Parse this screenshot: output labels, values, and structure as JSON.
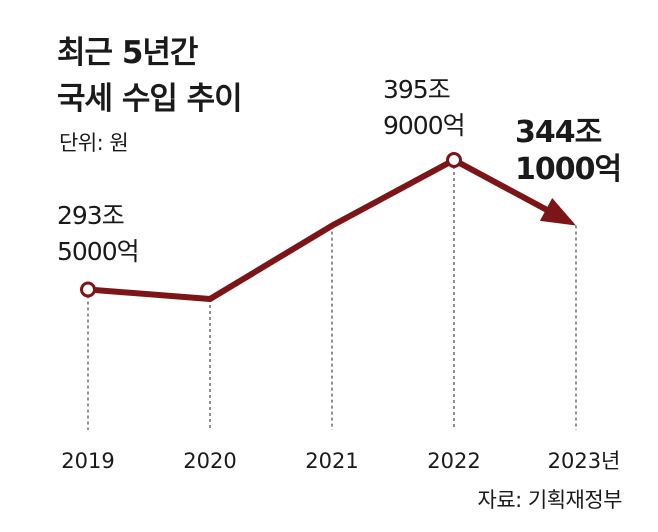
{
  "header": {
    "title_line1": "최근 5년간",
    "title_line2": "국세 수입 추이",
    "unit": "단위: 원"
  },
  "source": "자료: 기획재정부",
  "colors": {
    "line": "#7d1418",
    "marker_fill": "#ffffff",
    "drop_line": "#555555"
  },
  "labels": {
    "y2019": {
      "line1": "293조",
      "line2": "5000억"
    },
    "y2022": {
      "line1": "395조",
      "line2": "9000억"
    },
    "y2023": {
      "line1": "344조",
      "line2": "1000억"
    }
  },
  "chart_data": {
    "type": "line",
    "title": "최근 5년간 국세 수입 추이",
    "unit": "원",
    "categories": [
      "2019",
      "2020",
      "2021",
      "2022",
      "2023년"
    ],
    "values": [
      2935000,
      2860000,
      3440000,
      3959000,
      3441000
    ],
    "value_unit": "억",
    "grid": false,
    "legend": "none"
  }
}
